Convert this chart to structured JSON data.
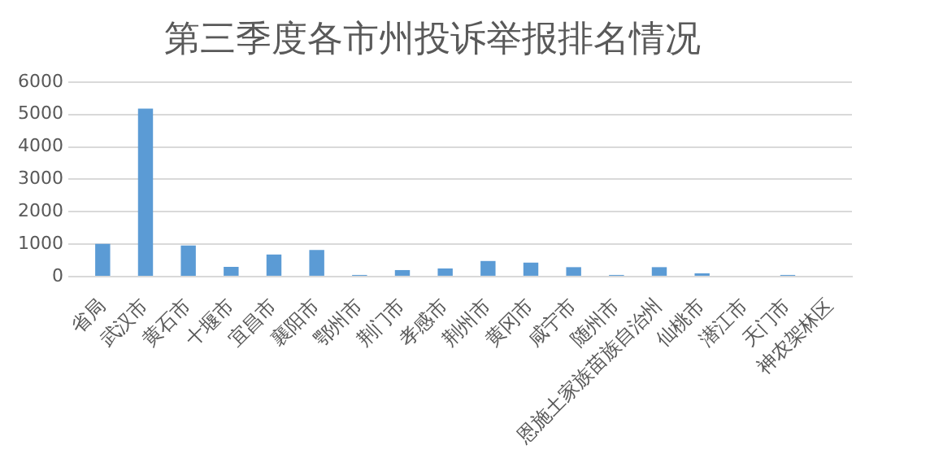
{
  "chart_data": {
    "type": "bar",
    "title": "第三季度各市州投诉举报排名情况",
    "categories": [
      "省局",
      "武汉市",
      "黄石市",
      "十堰市",
      "宜昌市",
      "襄阳市",
      "鄂州市",
      "荆门市",
      "孝感市",
      "荆州市",
      "黄冈市",
      "咸宁市",
      "随州市",
      "恩施土家族苗族自治州",
      "仙桃市",
      "潜江市",
      "天门市",
      "神农架林区"
    ],
    "values": [
      1010,
      5180,
      960,
      300,
      680,
      820,
      50,
      200,
      250,
      480,
      430,
      290,
      50,
      290,
      100,
      0,
      50,
      0
    ],
    "color": "#5b9bd5",
    "ylim": [
      0,
      6000
    ],
    "yticks": [
      0,
      1000,
      2000,
      3000,
      4000,
      5000,
      6000
    ],
    "grid": "y",
    "legend": false
  }
}
